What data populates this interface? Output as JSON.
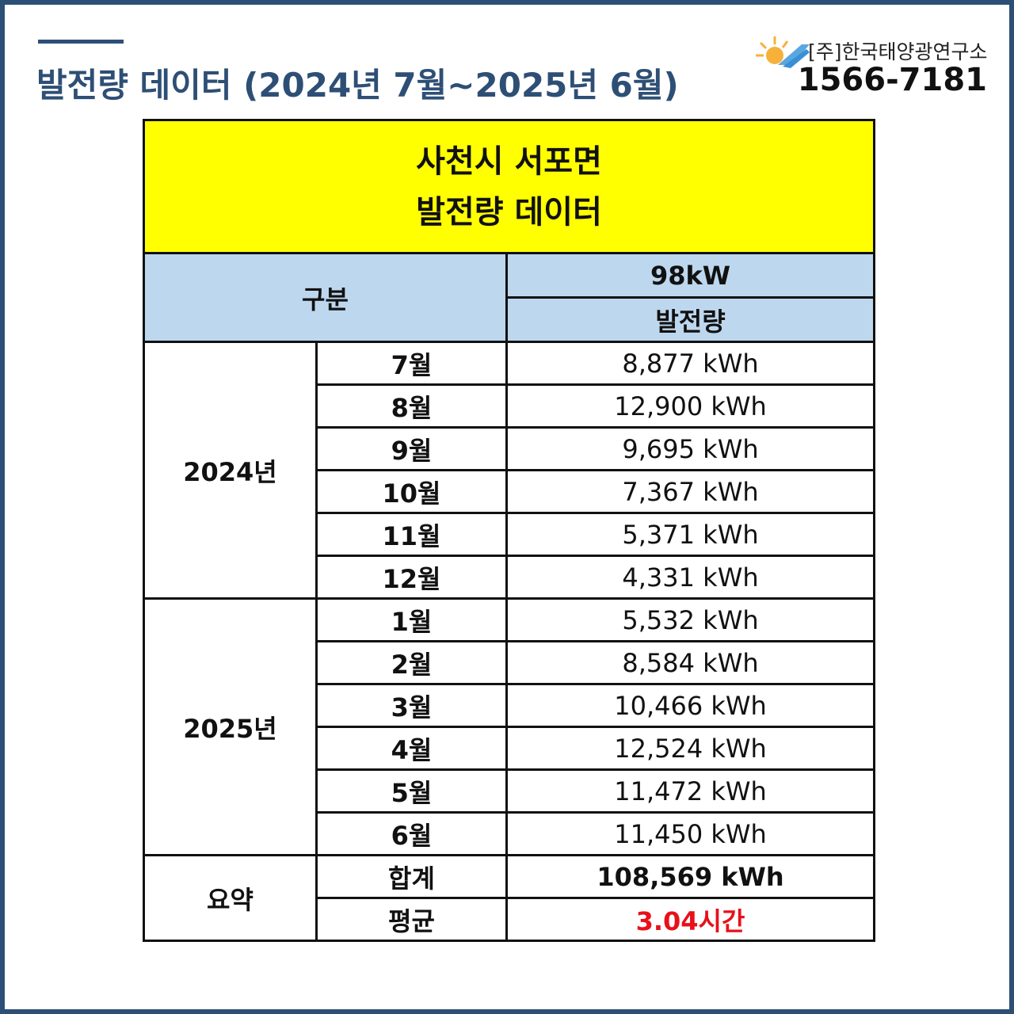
{
  "header": {
    "title": "발전량 데이터 (2024년 7월~2025년 6월)",
    "company": "[주]한국태양광연구소",
    "phone": "1566-7181"
  },
  "table": {
    "title_lines": [
      "사천시 서포면",
      "발전량 데이터"
    ],
    "header": {
      "category": "구분",
      "capacity": "98kW",
      "column": "발전량"
    },
    "groups": [
      {
        "label": "2024년",
        "rows": [
          [
            "7월",
            "8,877 kWh"
          ],
          [
            "8월",
            "12,900 kWh"
          ],
          [
            "9월",
            "9,695 kWh"
          ],
          [
            "10월",
            "7,367 kWh"
          ],
          [
            "11월",
            "5,371 kWh"
          ],
          [
            "12월",
            "4,331 kWh"
          ]
        ]
      },
      {
        "label": "2025년",
        "rows": [
          [
            "1월",
            "5,532 kWh"
          ],
          [
            "2월",
            "8,584 kWh"
          ],
          [
            "3월",
            "10,466 kWh"
          ],
          [
            "4월",
            "12,524 kWh"
          ],
          [
            "5월",
            "11,472 kWh"
          ],
          [
            "6월",
            "11,450 kWh"
          ]
        ]
      }
    ],
    "summary": {
      "label": "요약",
      "rows": [
        [
          "합계",
          "108,569 kWh"
        ],
        [
          "평균",
          "3.04시간"
        ]
      ]
    }
  }
}
